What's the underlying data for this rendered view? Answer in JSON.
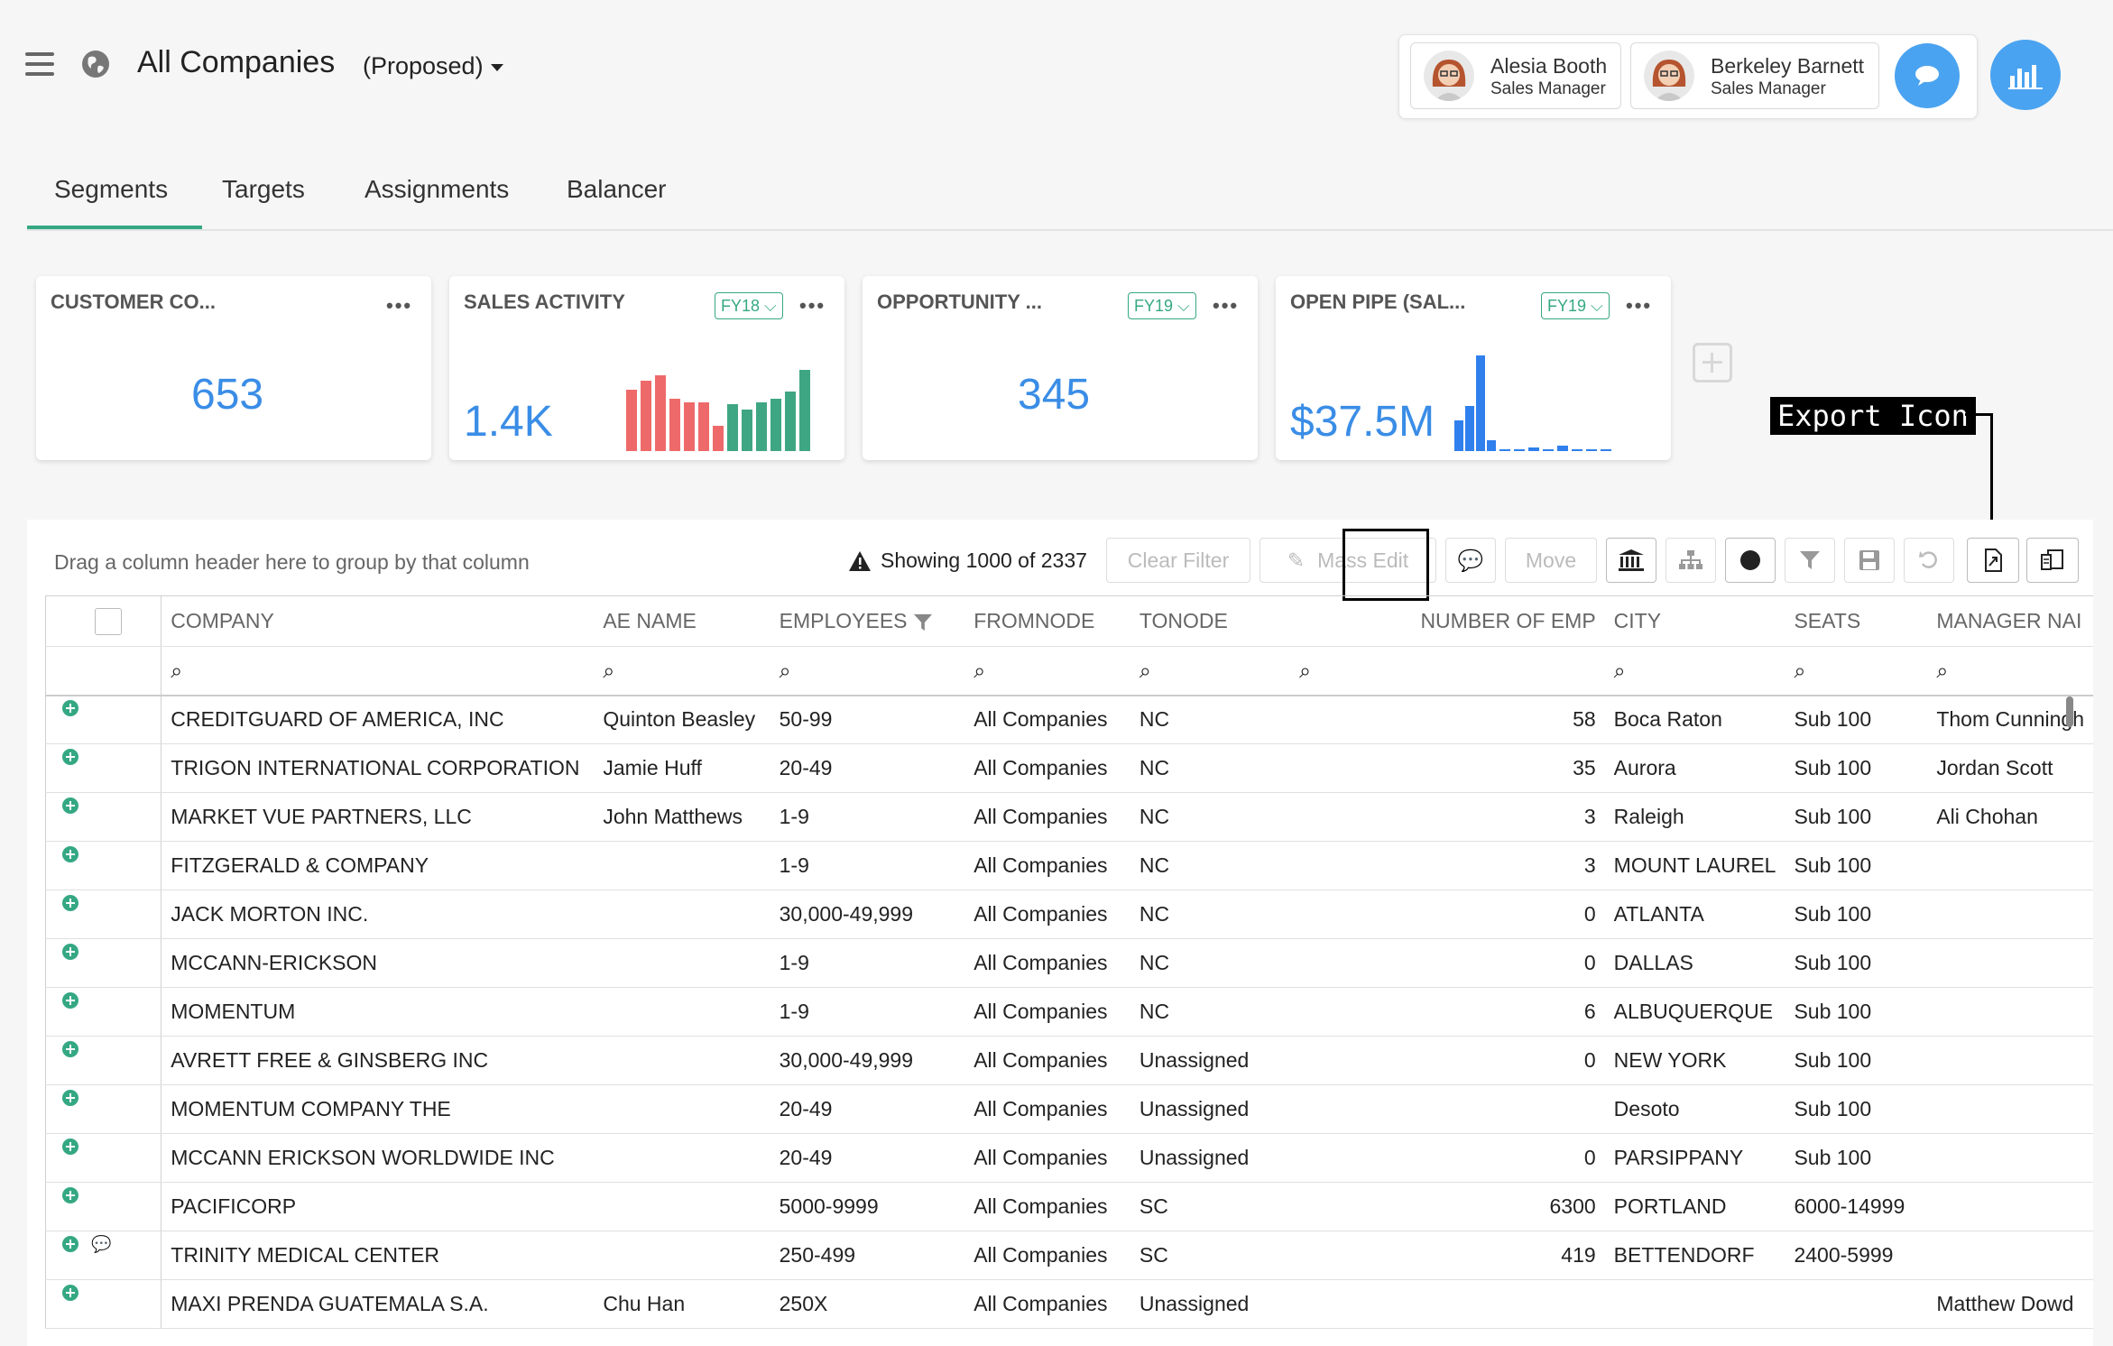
{
  "header": {
    "title": "All Companies",
    "scenario": "(Proposed)"
  },
  "users": [
    {
      "name": "Alesia Booth",
      "role": "Sales Manager"
    },
    {
      "name": "Berkeley Barnett",
      "role": "Sales Manager"
    }
  ],
  "tabs": [
    "Segments",
    "Targets",
    "Assignments",
    "Balancer"
  ],
  "cards": [
    {
      "title": "CUSTOMER CO...",
      "value": "653"
    },
    {
      "title": "SALES ACTIVITY",
      "badge": "FY18",
      "value": "1.4K"
    },
    {
      "title": "OPPORTUNITY ...",
      "badge": "FY19",
      "value": "345"
    },
    {
      "title": "OPEN PIPE (SAL...",
      "badge": "FY19",
      "value": "$37.5M"
    }
  ],
  "colors": {
    "accent": "#35a883",
    "blue": "#3a8de6",
    "red": "#ee6a6a"
  },
  "callout": "Export Icon",
  "grid": {
    "group_hint": "Drag a column header here to group by that column",
    "showing": "Showing 1000 of 2337",
    "toolbar": {
      "clear_filter": "Clear Filter",
      "mass_edit": "Mass Edit",
      "move": "Move"
    },
    "columns": [
      "COMPANY",
      "AE NAME",
      "EMPLOYEES",
      "FROMNODE",
      "TONODE",
      "NUMBER OF EMP",
      "CITY",
      "SEATS",
      "MANAGER NAI"
    ],
    "rows": [
      [
        "CREDITGUARD OF AMERICA, INC",
        "Quinton Beasley",
        "50-99",
        "All Companies",
        "NC",
        "58",
        "Boca Raton",
        "Sub 100",
        "Thom Cunningh"
      ],
      [
        "TRIGON INTERNATIONAL CORPORATION",
        "Jamie Huff",
        "20-49",
        "All Companies",
        "NC",
        "35",
        "Aurora",
        "Sub 100",
        "Jordan Scott"
      ],
      [
        "MARKET VUE PARTNERS, LLC",
        "John Matthews",
        "1-9",
        "All Companies",
        "NC",
        "3",
        "Raleigh",
        "Sub 100",
        "Ali Chohan"
      ],
      [
        "FITZGERALD & COMPANY",
        "",
        "1-9",
        "All Companies",
        "NC",
        "3",
        "MOUNT LAUREL",
        "Sub 100",
        ""
      ],
      [
        "JACK MORTON INC.",
        "",
        "30,000-49,999",
        "All Companies",
        "NC",
        "0",
        "ATLANTA",
        "Sub 100",
        ""
      ],
      [
        "MCCANN-ERICKSON",
        "",
        "1-9",
        "All Companies",
        "NC",
        "0",
        "DALLAS",
        "Sub 100",
        ""
      ],
      [
        "MOMENTUM",
        "",
        "1-9",
        "All Companies",
        "NC",
        "6",
        "ALBUQUERQUE",
        "Sub 100",
        ""
      ],
      [
        "AVRETT FREE & GINSBERG INC",
        "",
        "30,000-49,999",
        "All Companies",
        "Unassigned",
        "0",
        "NEW YORK",
        "Sub 100",
        ""
      ],
      [
        "MOMENTUM COMPANY THE",
        "",
        "20-49",
        "All Companies",
        "Unassigned",
        "",
        "Desoto",
        "Sub 100",
        ""
      ],
      [
        "MCCANN ERICKSON WORLDWIDE INC",
        "",
        "20-49",
        "All Companies",
        "Unassigned",
        "0",
        "PARSIPPANY",
        "Sub 100",
        ""
      ],
      [
        "PACIFICORP",
        "",
        "5000-9999",
        "All Companies",
        "SC",
        "6300",
        "PORTLAND",
        "6000-14999",
        ""
      ],
      [
        "TRINITY MEDICAL CENTER",
        "",
        "250-499",
        "All Companies",
        "SC",
        "419",
        "BETTENDORF",
        "2400-5999",
        ""
      ],
      [
        "MAXI PRENDA GUATEMALA S.A.",
        "Chu Han",
        "250X",
        "All Companies",
        "Unassigned",
        "",
        "",
        "",
        "Matthew Dowd"
      ]
    ]
  }
}
